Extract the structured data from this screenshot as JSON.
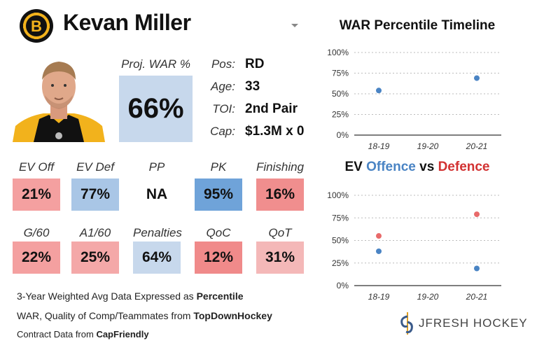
{
  "player": {
    "name": "Kevan Miller",
    "team_logo_letter": "B",
    "proj_war_label": "Proj. WAR %",
    "proj_war_value": "66%"
  },
  "info": {
    "pos_label": "Pos:",
    "pos_value": "RD",
    "age_label": "Age:",
    "age_value": "33",
    "toi_label": "TOI:",
    "toi_value": "2nd Pair",
    "cap_label": "Cap:",
    "cap_value": "$1.3M x 0"
  },
  "stats_row1": [
    {
      "label": "EV Off",
      "value": "21%",
      "color": "#f4a0a0"
    },
    {
      "label": "EV Def",
      "value": "77%",
      "color": "#a9c6e6"
    },
    {
      "label": "PP",
      "value": "NA",
      "color": "#ffffff"
    },
    {
      "label": "PK",
      "value": "95%",
      "color": "#6fa3d9"
    },
    {
      "label": "Finishing",
      "value": "16%",
      "color": "#f08e8e"
    }
  ],
  "stats_row2": [
    {
      "label": "G/60",
      "value": "22%",
      "color": "#f4a0a0"
    },
    {
      "label": "A1/60",
      "value": "25%",
      "color": "#f4a8a8"
    },
    {
      "label": "Penalties",
      "value": "64%",
      "color": "#c7d8ec"
    },
    {
      "label": "QoC",
      "value": "12%",
      "color": "#f08a8a"
    },
    {
      "label": "QoT",
      "value": "31%",
      "color": "#f4b8b8"
    }
  ],
  "notes": {
    "line1_pre": "3-Year Weighted Avg Data Expressed as ",
    "line1_bold": "Percentile",
    "line2_pre": "WAR, Quality of Comp/Teammates from ",
    "line2_bold": "TopDownHockey",
    "line3_pre": "Contract Data from ",
    "line3_bold": "CapFriendly"
  },
  "brand": {
    "text": "JFRESH HOCKEY"
  },
  "chart_data": [
    {
      "type": "scatter",
      "title": "WAR Percentile Timeline",
      "categories": [
        "18-19",
        "19-20",
        "20-21"
      ],
      "yticks": [
        "0%",
        "25%",
        "50%",
        "75%",
        "100%"
      ],
      "ylim": [
        0,
        100
      ],
      "series": [
        {
          "name": "WAR",
          "color": "#4a84c4",
          "values": [
            54,
            null,
            69
          ]
        }
      ]
    },
    {
      "type": "scatter",
      "title_part1": "EV ",
      "title_part2": "Offence",
      "title_part3": " vs ",
      "title_part4": "Defence",
      "categories": [
        "18-19",
        "19-20",
        "20-21"
      ],
      "yticks": [
        "0%",
        "25%",
        "50%",
        "75%",
        "100%"
      ],
      "ylim": [
        0,
        100
      ],
      "series": [
        {
          "name": "Offence",
          "color": "#4a84c4",
          "values": [
            38,
            null,
            19
          ]
        },
        {
          "name": "Defence",
          "color": "#e86a6a",
          "values": [
            55,
            null,
            79
          ]
        }
      ]
    }
  ]
}
